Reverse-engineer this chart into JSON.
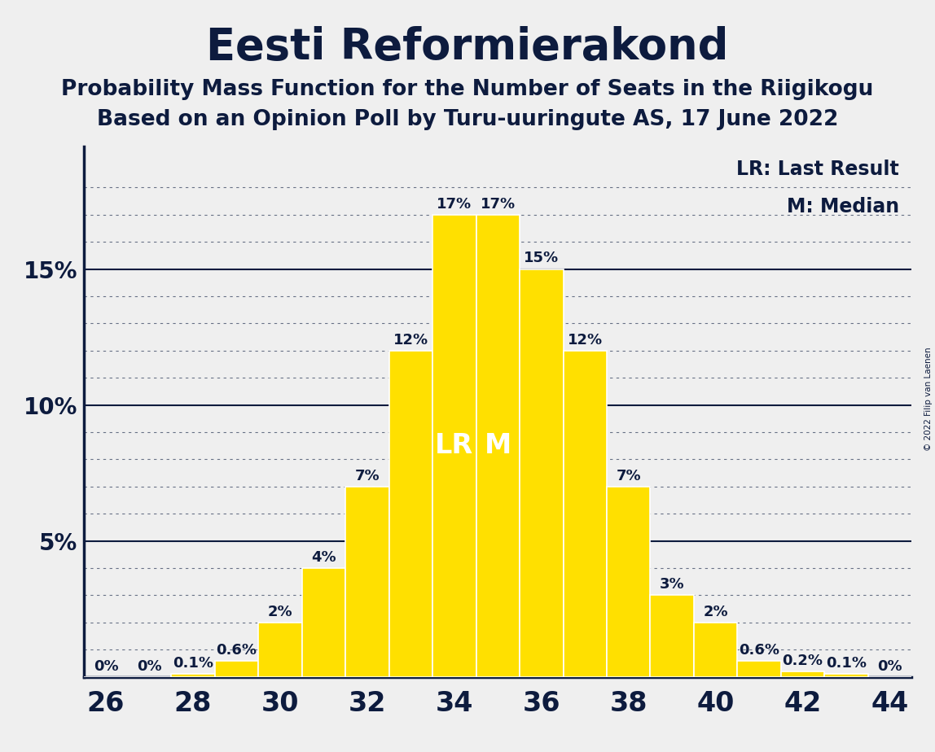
{
  "title": "Eesti Reformierakond",
  "subtitle1": "Probability Mass Function for the Number of Seats in the Riigikogu",
  "subtitle2": "Based on an Opinion Poll by Turu-uuringute AS, 17 June 2022",
  "copyright": "© 2022 Filip van Laenen",
  "legend_lr": "LR: Last Result",
  "legend_m": "M: Median",
  "seats": [
    26,
    27,
    28,
    29,
    30,
    31,
    32,
    33,
    34,
    35,
    36,
    37,
    38,
    39,
    40,
    41,
    42,
    43,
    44
  ],
  "probabilities": [
    0.0,
    0.0,
    0.1,
    0.6,
    2.0,
    4.0,
    7.0,
    12.0,
    17.0,
    17.0,
    15.0,
    12.0,
    7.0,
    3.0,
    2.0,
    0.6,
    0.2,
    0.1,
    0.0
  ],
  "bar_color": "#FFE000",
  "bar_edge_color": "#FFFFFF",
  "lr_seat": 34,
  "median_seat": 35,
  "lr_label": "LR",
  "median_label": "M",
  "label_color_inside": "#FFFFFF",
  "label_color_outside": "#0d1b3e",
  "background_color": "#efefef",
  "axes_background": "#efefef",
  "title_color": "#0d1b3e",
  "title_fontsize": 38,
  "subtitle_fontsize": 19,
  "ylabel_ticks": [
    5,
    10,
    15
  ],
  "solid_grid_lines": [
    5,
    10,
    15
  ],
  "dotted_grid_lines": [
    1,
    2,
    3,
    4,
    6,
    7,
    8,
    9,
    11,
    12,
    13,
    14,
    16,
    17,
    18
  ],
  "ylim": [
    0,
    19.5
  ],
  "xtick_positions": [
    26,
    28,
    30,
    32,
    34,
    36,
    38,
    40,
    42,
    44
  ],
  "annotation_fontsize": 13,
  "inside_label_fontsize": 24
}
